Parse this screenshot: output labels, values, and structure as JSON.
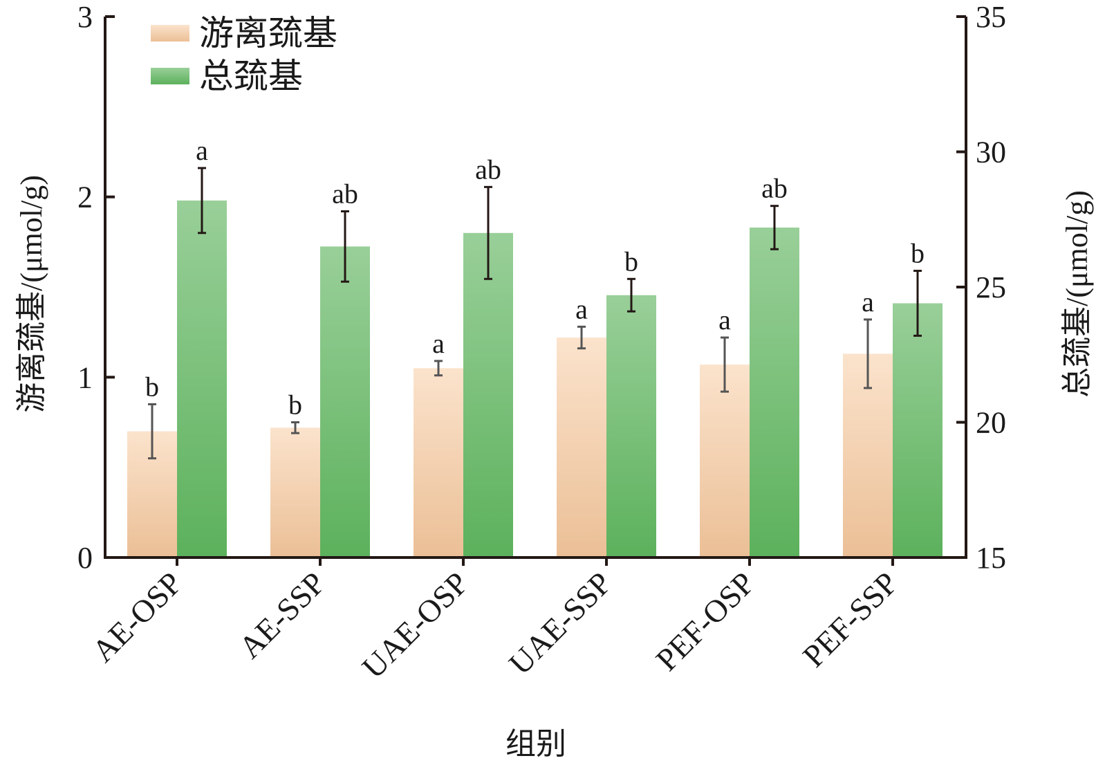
{
  "chart_data": {
    "type": "bar",
    "categories": [
      "AE-OSP",
      "AE-SSP",
      "UAE-OSP",
      "UAE-SSP",
      "PEF-OSP",
      "PEF-SSP"
    ],
    "xlabel": "组别",
    "left_axis": {
      "label": "游离巯基/(μmol/g)",
      "ylim": [
        0,
        3
      ],
      "ticks": [
        0,
        1,
        2,
        3
      ]
    },
    "right_axis": {
      "label": "总巯基/(μmol/g)",
      "ylim": [
        15,
        35
      ],
      "ticks": [
        15,
        20,
        25,
        30,
        35
      ]
    },
    "series": [
      {
        "name": "游离巯基",
        "axis": "left",
        "color_top": "#fbe3cc",
        "color_bottom": "#ebbf96",
        "values": [
          0.7,
          0.72,
          1.05,
          1.22,
          1.07,
          1.13
        ],
        "errors": [
          0.15,
          0.03,
          0.04,
          0.06,
          0.15,
          0.19
        ],
        "letters": [
          "b",
          "b",
          "a",
          "a",
          "a",
          "a"
        ]
      },
      {
        "name": "总巯基",
        "axis": "right",
        "color_top": "#99cf99",
        "color_bottom": "#5cb15c",
        "values": [
          28.2,
          26.5,
          27.0,
          24.7,
          27.2,
          24.4
        ],
        "errors": [
          1.2,
          1.3,
          1.7,
          0.6,
          0.8,
          1.2
        ],
        "letters": [
          "a",
          "ab",
          "ab",
          "b",
          "ab",
          "b"
        ]
      }
    ],
    "legend_position": "top-left",
    "grid": false
  }
}
